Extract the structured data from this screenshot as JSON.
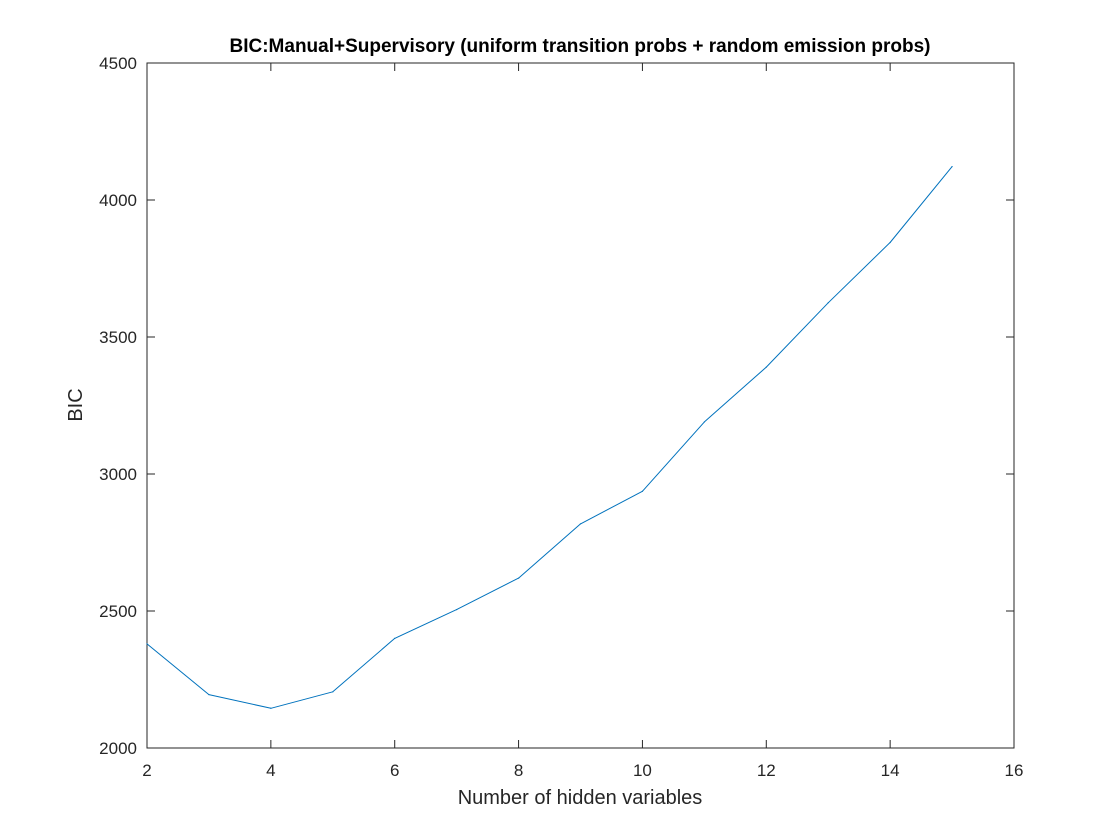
{
  "chart_data": {
    "type": "line",
    "title": "BIC:Manual+Supervisory (uniform transition probs + random emission probs)",
    "xlabel": "Number of hidden variables",
    "ylabel": "BIC",
    "xlim": [
      2,
      16
    ],
    "ylim": [
      2000,
      4500
    ],
    "xticks": [
      2,
      4,
      6,
      8,
      10,
      12,
      14,
      16
    ],
    "yticks": [
      2000,
      2500,
      3000,
      3500,
      4000,
      4500
    ],
    "grid": false,
    "legend": "none",
    "series": [
      {
        "color": "#0072bd",
        "x": [
          2,
          3,
          4,
          5,
          6,
          7,
          8,
          9,
          10,
          11,
          12,
          13,
          14,
          15
        ],
        "y": [
          2380,
          2195,
          2145,
          2205,
          2400,
          2505,
          2620,
          2818,
          2937,
          3190,
          3390,
          3625,
          3845,
          4122
        ]
      }
    ]
  }
}
